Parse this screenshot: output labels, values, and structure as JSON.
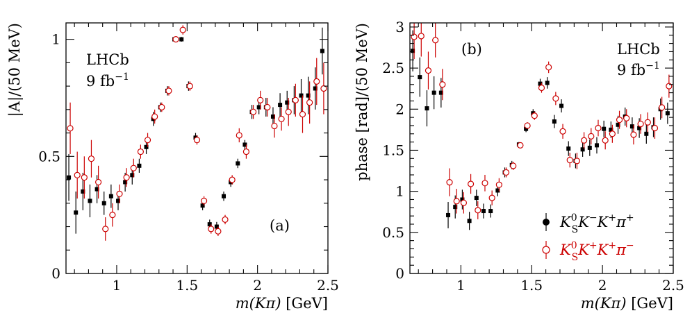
{
  "chart_data": [
    {
      "type": "scatter",
      "panel_label": "(a)",
      "experiment_label": "LHCb",
      "luminosity_label": "9 fb",
      "luminosity_exponent": "−1",
      "xlabel_var": "m(Kπ)",
      "xlabel_unit": "[GeV]",
      "ylabel": "|A|/(50 MeV)",
      "xlim": [
        0.64,
        2.5
      ],
      "ylim": [
        0,
        1.07
      ],
      "xticks": [
        1,
        1.5,
        2,
        2.5
      ],
      "xtick_labels": [
        "1",
        "1.5",
        "2",
        "2.5"
      ],
      "yticks": [
        0,
        0.5,
        1
      ],
      "ytick_labels": [
        "0",
        "0.5",
        "1"
      ],
      "series": [
        {
          "name": "KS0 K− K+ π+",
          "marker": "filled-square",
          "color": "#000000",
          "x": [
            0.665,
            0.715,
            0.765,
            0.815,
            0.865,
            0.915,
            0.965,
            1.015,
            1.065,
            1.115,
            1.165,
            1.215,
            1.265,
            1.315,
            1.365,
            1.415,
            1.465,
            1.515,
            1.565,
            1.615,
            1.665,
            1.715,
            1.765,
            1.815,
            1.865,
            1.915,
            1.965,
            2.015,
            2.065,
            2.115,
            2.165,
            2.215,
            2.265,
            2.315,
            2.365,
            2.415,
            2.465
          ],
          "y": [
            0.41,
            0.26,
            0.35,
            0.31,
            0.36,
            0.3,
            0.33,
            0.31,
            0.39,
            0.42,
            0.46,
            0.54,
            0.66,
            0.71,
            0.78,
            1.0,
            1.0,
            0.8,
            0.58,
            0.29,
            0.21,
            0.2,
            0.33,
            0.39,
            0.47,
            0.55,
            0.69,
            0.71,
            0.71,
            0.67,
            0.72,
            0.73,
            0.74,
            0.76,
            0.76,
            0.79,
            0.95
          ],
          "err": [
            0.1,
            0.09,
            0.08,
            0.07,
            0.06,
            0.05,
            0.05,
            0.04,
            0.04,
            0.04,
            0.03,
            0.03,
            0.03,
            0.02,
            0.02,
            0.01,
            0.01,
            0.02,
            0.02,
            0.02,
            0.02,
            0.02,
            0.02,
            0.02,
            0.02,
            0.02,
            0.03,
            0.03,
            0.04,
            0.04,
            0.05,
            0.05,
            0.06,
            0.07,
            0.08,
            0.09,
            0.1
          ]
        },
        {
          "name": "KS0 K+ K+ π−",
          "marker": "open-circle",
          "color": "#cc0000",
          "x": [
            0.665,
            0.715,
            0.765,
            0.815,
            0.865,
            0.915,
            0.965,
            1.015,
            1.065,
            1.115,
            1.165,
            1.215,
            1.265,
            1.315,
            1.365,
            1.415,
            1.465,
            1.515,
            1.565,
            1.615,
            1.665,
            1.715,
            1.765,
            1.815,
            1.865,
            1.915,
            1.965,
            2.015,
            2.065,
            2.115,
            2.165,
            2.215,
            2.265,
            2.315,
            2.365,
            2.415,
            2.465
          ],
          "y": [
            0.62,
            0.42,
            0.41,
            0.49,
            0.39,
            0.19,
            0.25,
            0.34,
            0.41,
            0.45,
            0.52,
            0.57,
            0.67,
            0.71,
            0.78,
            1.0,
            1.04,
            0.8,
            0.57,
            0.31,
            0.19,
            0.18,
            0.23,
            0.4,
            0.59,
            0.52,
            0.69,
            0.74,
            0.71,
            0.63,
            0.66,
            0.69,
            0.74,
            0.68,
            0.73,
            0.82,
            0.79
          ],
          "err": [
            0.11,
            0.1,
            0.09,
            0.08,
            0.07,
            0.05,
            0.05,
            0.04,
            0.04,
            0.04,
            0.03,
            0.03,
            0.03,
            0.02,
            0.02,
            0.01,
            0.02,
            0.02,
            0.02,
            0.02,
            0.02,
            0.02,
            0.02,
            0.02,
            0.03,
            0.03,
            0.03,
            0.04,
            0.04,
            0.05,
            0.05,
            0.06,
            0.07,
            0.08,
            0.09,
            0.1,
            0.11
          ]
        }
      ]
    },
    {
      "type": "scatter",
      "panel_label": "(b)",
      "experiment_label": "LHCb",
      "luminosity_label": "9 fb",
      "luminosity_exponent": "−1",
      "xlabel_var": "m(Kπ)",
      "xlabel_unit": "[GeV]",
      "ylabel": "phase [rad]/(50 MeV)",
      "xlim": [
        0.64,
        2.5
      ],
      "ylim": [
        0,
        3.05
      ],
      "xticks": [
        1,
        1.5,
        2,
        2.5
      ],
      "xtick_labels": [
        "1",
        "1.5",
        "2",
        "2.5"
      ],
      "yticks": [
        0,
        0.5,
        1,
        1.5,
        2,
        2.5,
        3
      ],
      "ytick_labels": [
        "0",
        "0.5",
        "1",
        "1.5",
        "2",
        "2.5",
        "3"
      ],
      "series": [
        {
          "name": "KS0 K− K+ π+",
          "marker": "filled-square",
          "color": "#000000",
          "x": [
            0.665,
            0.715,
            0.765,
            0.815,
            0.865,
            0.915,
            0.965,
            1.015,
            1.065,
            1.115,
            1.165,
            1.215,
            1.265,
            1.315,
            1.365,
            1.415,
            1.465,
            1.515,
            1.565,
            1.615,
            1.665,
            1.715,
            1.765,
            1.815,
            1.865,
            1.915,
            1.965,
            2.015,
            2.065,
            2.115,
            2.165,
            2.215,
            2.265,
            2.315,
            2.365,
            2.415,
            2.465
          ],
          "y": [
            2.71,
            2.39,
            2.01,
            2.2,
            2.2,
            0.71,
            0.81,
            0.9,
            0.64,
            0.92,
            0.76,
            0.76,
            1.01,
            1.23,
            1.32,
            1.57,
            1.76,
            1.95,
            2.31,
            2.32,
            1.85,
            2.04,
            1.52,
            1.37,
            1.51,
            1.53,
            1.56,
            1.76,
            1.75,
            1.81,
            1.91,
            1.79,
            1.77,
            1.7,
            1.78,
            2.0,
            1.95
          ],
          "err": [
            0.25,
            0.24,
            0.22,
            0.2,
            0.18,
            0.16,
            0.14,
            0.12,
            0.11,
            0.1,
            0.09,
            0.08,
            0.07,
            0.06,
            0.05,
            0.03,
            0.04,
            0.05,
            0.06,
            0.07,
            0.08,
            0.08,
            0.09,
            0.09,
            0.09,
            0.1,
            0.1,
            0.1,
            0.1,
            0.11,
            0.11,
            0.11,
            0.12,
            0.12,
            0.12,
            0.13,
            0.13
          ]
        },
        {
          "name": "KS0 K+ K+ π−",
          "marker": "open-circle",
          "color": "#cc0000",
          "x": [
            0.665,
            0.715,
            0.765,
            0.815,
            0.865,
            0.915,
            0.965,
            1.015,
            1.065,
            1.115,
            1.165,
            1.215,
            1.265,
            1.315,
            1.365,
            1.415,
            1.465,
            1.515,
            1.565,
            1.615,
            1.665,
            1.715,
            1.765,
            1.815,
            1.865,
            1.915,
            1.965,
            2.015,
            2.065,
            2.115,
            2.165,
            2.215,
            2.265,
            2.315,
            2.365,
            2.415,
            2.465
          ],
          "y": [
            2.88,
            2.89,
            2.47,
            2.84,
            2.3,
            1.11,
            0.88,
            0.86,
            1.09,
            0.77,
            1.1,
            0.92,
            1.08,
            1.23,
            1.31,
            1.56,
            1.8,
            1.92,
            2.26,
            2.51,
            2.13,
            1.73,
            1.38,
            1.37,
            1.62,
            1.67,
            1.77,
            1.62,
            1.7,
            1.87,
            1.89,
            1.69,
            1.82,
            1.84,
            1.77,
            2.02,
            2.28
          ],
          "err": [
            0.27,
            0.25,
            0.23,
            0.21,
            0.19,
            0.17,
            0.15,
            0.13,
            0.12,
            0.11,
            0.1,
            0.09,
            0.08,
            0.06,
            0.05,
            0.03,
            0.04,
            0.05,
            0.06,
            0.07,
            0.08,
            0.09,
            0.09,
            0.1,
            0.1,
            0.1,
            0.1,
            0.11,
            0.11,
            0.11,
            0.11,
            0.12,
            0.12,
            0.12,
            0.13,
            0.13,
            0.14
          ]
        }
      ],
      "legend": {
        "placement": "bottom-right",
        "entries": [
          {
            "base": "K",
            "sub": "S",
            "sup": "0",
            "rest_parts": [
              [
                "K",
                "−"
              ],
              [
                "K",
                "+"
              ],
              [
                "π",
                "+"
              ]
            ],
            "color": "#000000"
          },
          {
            "base": "K",
            "sub": "S",
            "sup": "0",
            "rest_parts": [
              [
                "K",
                "+"
              ],
              [
                "K",
                "+"
              ],
              [
                "π",
                "−"
              ]
            ],
            "color": "#cc0000"
          }
        ]
      }
    }
  ]
}
